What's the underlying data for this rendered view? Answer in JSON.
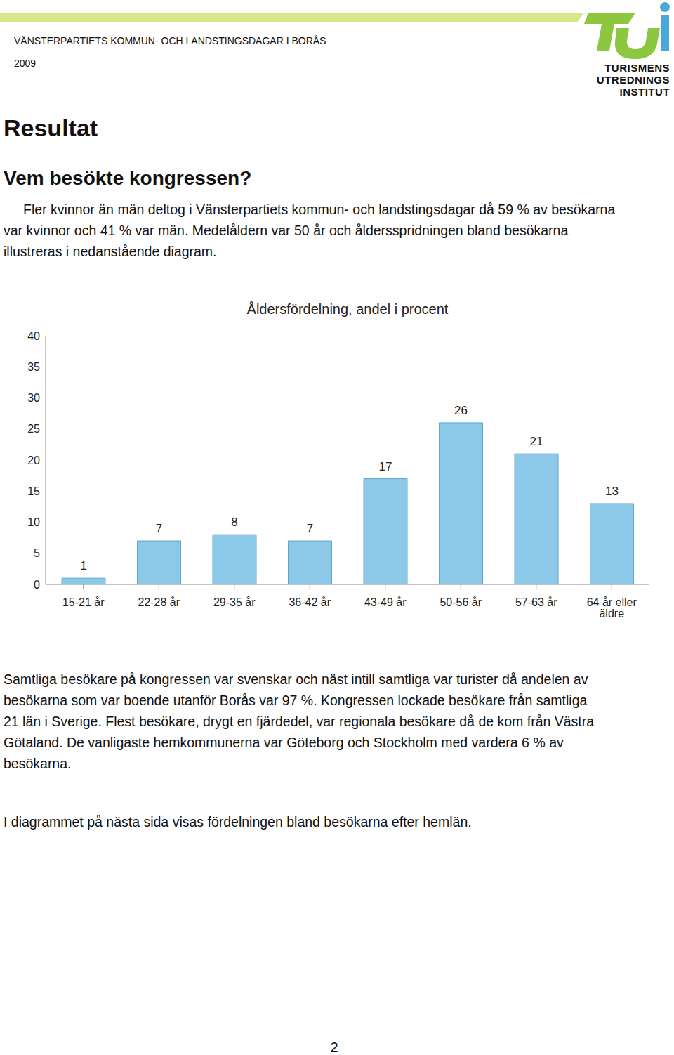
{
  "header": {
    "line": "VÄNSTERPARTIETS KOMMUN- OCH LANDSTINGSDAGAR I BORÅS",
    "year": "2009",
    "logo": [
      "TURISMENS",
      "UTREDNINGS",
      "INSTITUT"
    ]
  },
  "heading": "Resultat",
  "subheading": "Vem besökte kongressen?",
  "paragraph_1": [
    "Fler kvinnor än män deltog i Vänsterpartiets kommun- och landstingsdagar då 59 % av besökarna",
    "var kvinnor och 41 % var män. Medelåldern var 50 år och åldersspridningen bland besökarna",
    "illustreras i nedanstående diagram."
  ],
  "chart_data": {
    "type": "bar",
    "title": "Åldersfördelning, andel i procent",
    "categories": [
      "15-21 år",
      "22-28 år",
      "29-35 år",
      "36-42 år",
      "43-49 år",
      "50-56 år",
      "57-63 år",
      "64 år eller äldre"
    ],
    "values": [
      1,
      7,
      8,
      7,
      17,
      26,
      21,
      13
    ],
    "color": "#8cc8e8",
    "ylim": [
      0,
      40
    ],
    "yticks": [
      0,
      5,
      10,
      15,
      20,
      25,
      30,
      35,
      40
    ],
    "grid": false,
    "data_labels": true
  },
  "paragraph_2": [
    "Samtliga besökare på kongressen var svenskar och näst intill samtliga var turister då andelen av",
    "besökarna som var boende utanför Borås var 97 %. Kongressen lockade besökare från samtliga",
    "21 län i Sverige. Flest besökare, drygt en fjärdedel, var regionala besökare då de kom från Västra",
    "Götaland. De vanligaste hemkommunerna var Göteborg och Stockholm med vardera 6 % av",
    "besökarna."
  ],
  "paragraph_3": [
    "I diagrammet på nästa sida visas fördelningen bland besökarna efter hemlän."
  ],
  "page_number": "2"
}
